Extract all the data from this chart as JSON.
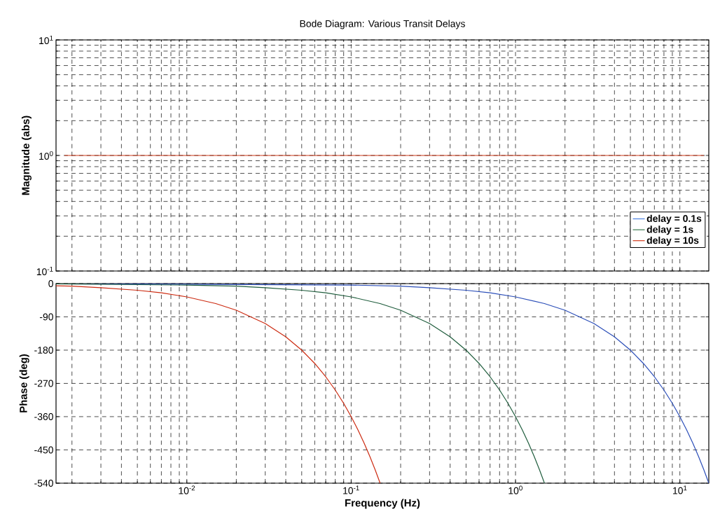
{
  "chart_data": [
    {
      "type": "line",
      "title": "Bode Diagram: Various Transit Delays",
      "ylabel": "Magnitude (abs)",
      "log": "xy",
      "grid": true,
      "legend": "bottom right",
      "tick_labels": "y",
      "xlim": [
        0.0016,
        15
      ],
      "ylim": [
        0.1,
        10
      ],
      "xticks": [
        {
          "value": 0.01,
          "label": null
        },
        {
          "value": 0.1,
          "label": null
        },
        {
          "value": 1,
          "label": null
        },
        {
          "value": 10,
          "label": null
        }
      ],
      "yticks": [
        {
          "value": 0.1,
          "label": "10$^{-1}$"
        },
        {
          "value": 1,
          "label": "10$^{0}$"
        },
        {
          "value": 10,
          "label": "10$^{1}$"
        }
      ],
      "series": [
        {
          "name": "delay = 0.1s",
          "color": "#4a7fe0"
        },
        {
          "name": "delay = 1s",
          "color": "#3a7a50"
        },
        {
          "name": "delay = 10s",
          "color": "#d03a1a",
          "x": [
            0.0018,
            0.01,
            0.1,
            1,
            10,
            14
          ],
          "values": [
            1,
            1,
            1,
            1,
            1,
            1
          ]
        }
      ]
    },
    {
      "type": "line",
      "xlabel": "Frequency (Hz)",
      "ylabel": "Phase (deg)",
      "log": "x",
      "grid": true,
      "xlim": [
        0.0016,
        15
      ],
      "ylim": [
        -540,
        0
      ],
      "xticks": [
        {
          "value": 0.01,
          "label": "10$^{-2}$"
        },
        {
          "value": 0.1,
          "label": "10$^{-1}$"
        },
        {
          "value": 1,
          "label": "10$^{0}$"
        },
        {
          "value": 10,
          "label": "10$^{1}$"
        }
      ],
      "yticks": [
        -540,
        -450,
        -360,
        -270,
        -180,
        -90,
        0
      ],
      "series": [
        {
          "color": "#2a4db8",
          "x": [
            0.0016,
            0.1,
            0.2,
            0.3,
            0.5,
            0.7,
            1,
            1.5,
            2,
            3,
            4,
            5,
            6,
            7,
            8,
            9,
            10,
            11,
            12,
            13,
            14,
            15
          ],
          "values": [
            0,
            -4,
            -7,
            -11,
            -18,
            -25,
            -36,
            -54,
            -72,
            -108,
            -144,
            -180,
            -216,
            -252,
            -288,
            -324,
            -360,
            -396,
            -432,
            -468,
            -504,
            -540
          ]
        },
        {
          "color": "#1e5c3c",
          "x": [
            0.0016,
            0.01,
            0.02,
            0.03,
            0.05,
            0.07,
            0.1,
            0.15,
            0.2,
            0.3,
            0.4,
            0.5,
            0.6,
            0.7,
            0.8,
            0.9,
            1,
            1.1,
            1.2,
            1.3,
            1.4,
            1.5
          ],
          "values": [
            -1,
            -4,
            -7,
            -11,
            -18,
            -25,
            -36,
            -54,
            -72,
            -108,
            -144,
            -180,
            -216,
            -252,
            -288,
            -324,
            -360,
            -396,
            -432,
            -468,
            -504,
            -540
          ]
        },
        {
          "color": "#cc2a10",
          "x": [
            0.0016,
            0.002,
            0.003,
            0.005,
            0.007,
            0.01,
            0.015,
            0.02,
            0.03,
            0.04,
            0.05,
            0.06,
            0.07,
            0.08,
            0.09,
            0.1,
            0.11,
            0.12,
            0.13,
            0.14,
            0.15
          ],
          "values": [
            -6,
            -7,
            -11,
            -18,
            -25,
            -36,
            -54,
            -72,
            -108,
            -144,
            -180,
            -216,
            -252,
            -288,
            -324,
            -360,
            -396,
            -432,
            -468,
            -504,
            -540
          ]
        }
      ]
    }
  ]
}
